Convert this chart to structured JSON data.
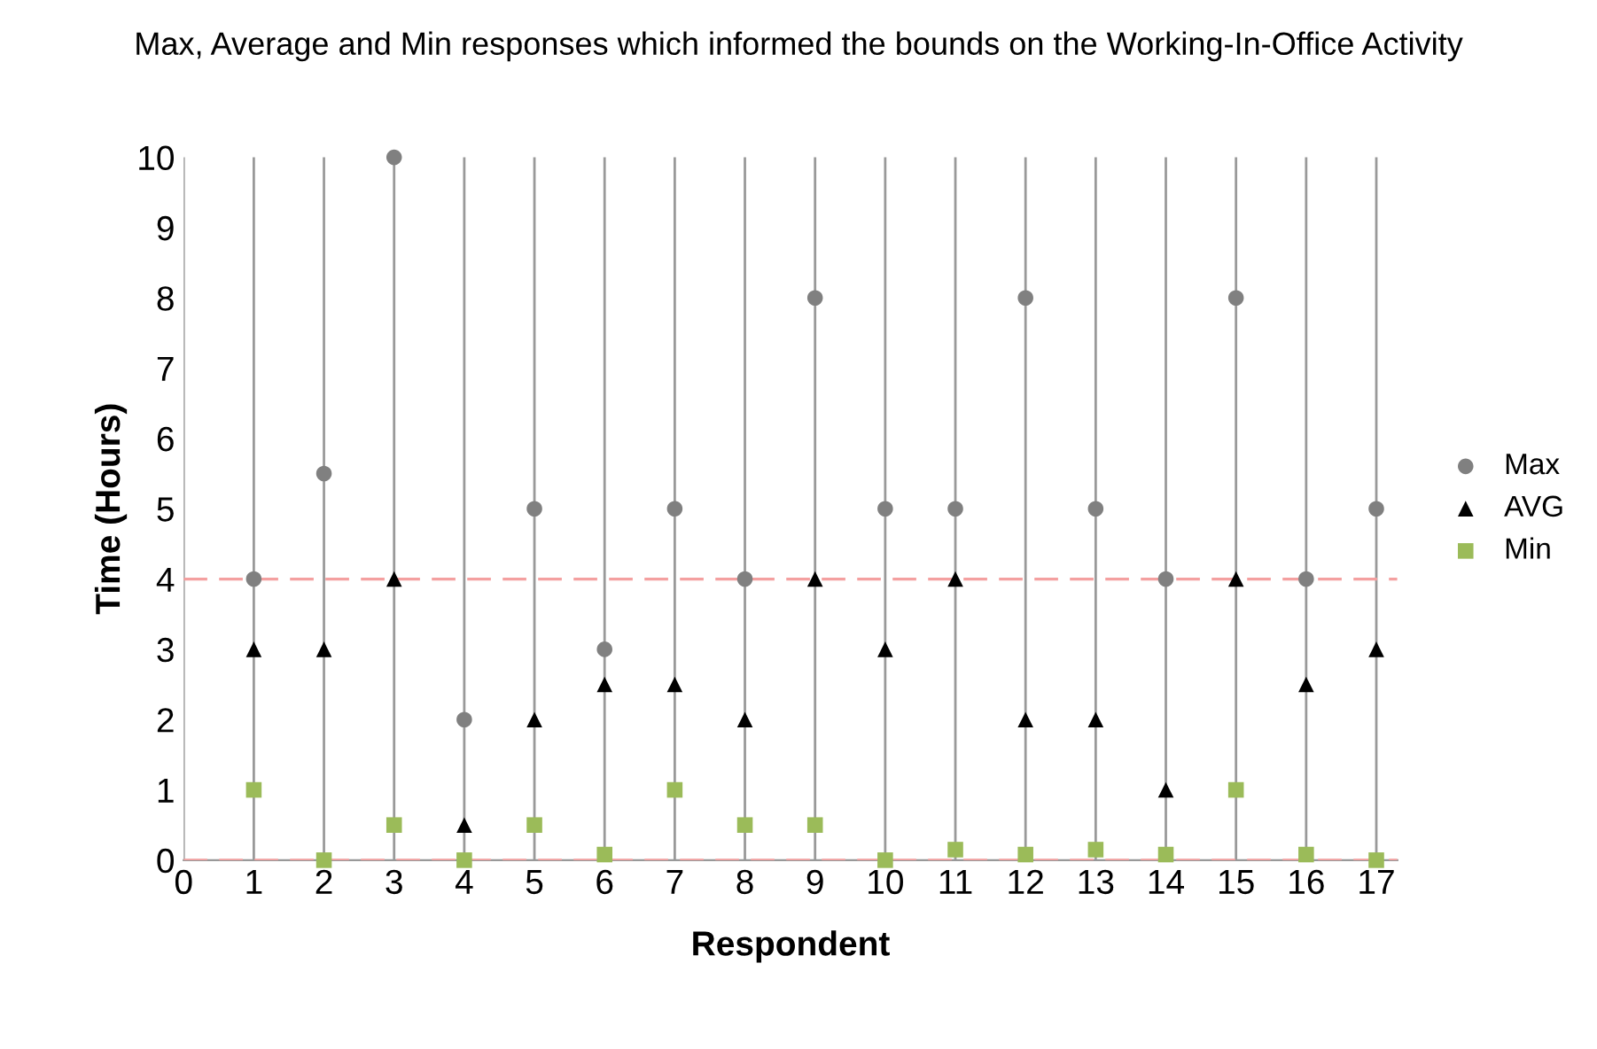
{
  "chart_data": {
    "type": "scatter",
    "title": "Max, Average and Min responses which informed the bounds on the Working-In-Office Activity",
    "xlabel": "Respondent",
    "ylabel": "Time (Hours)",
    "x": [
      1,
      2,
      3,
      4,
      5,
      6,
      7,
      8,
      9,
      10,
      11,
      12,
      13,
      14,
      15,
      16,
      17
    ],
    "series": [
      {
        "name": "Max",
        "color": "#808080",
        "marker": "circle",
        "values": [
          4,
          5.5,
          10,
          2,
          5,
          3,
          5,
          4,
          8,
          5,
          5,
          8,
          5,
          4,
          8,
          4,
          5
        ]
      },
      {
        "name": "AVG",
        "color": "#000000",
        "marker": "triangle",
        "values": [
          3,
          3,
          4,
          0.5,
          2,
          2.5,
          2.5,
          2,
          4,
          3,
          4,
          2,
          2,
          1,
          4,
          2.5,
          3
        ]
      },
      {
        "name": "Min",
        "color": "#9bbb59",
        "marker": "square",
        "values": [
          1,
          0,
          0.5,
          0,
          0.5,
          0.08,
          1,
          0.5,
          0.5,
          0,
          0.15,
          0.08,
          0.15,
          0.08,
          1,
          0.08,
          0
        ]
      }
    ],
    "xlim": [
      0,
      17.3
    ],
    "xticks": [
      0,
      1,
      2,
      3,
      4,
      5,
      6,
      7,
      8,
      9,
      10,
      11,
      12,
      13,
      14,
      15,
      16,
      17
    ],
    "ylim": [
      0,
      10
    ],
    "yticks": [
      0,
      1,
      2,
      3,
      4,
      5,
      6,
      7,
      8,
      9,
      10
    ],
    "grid": "x",
    "legend": "right",
    "ref_lines": [
      {
        "axis": "y",
        "value": 4,
        "color": "#f4a0a0",
        "line_style": "dashed"
      },
      {
        "axis": "y",
        "value": 0,
        "color": "#f4a0a0",
        "line_style": "dashed"
      }
    ]
  }
}
